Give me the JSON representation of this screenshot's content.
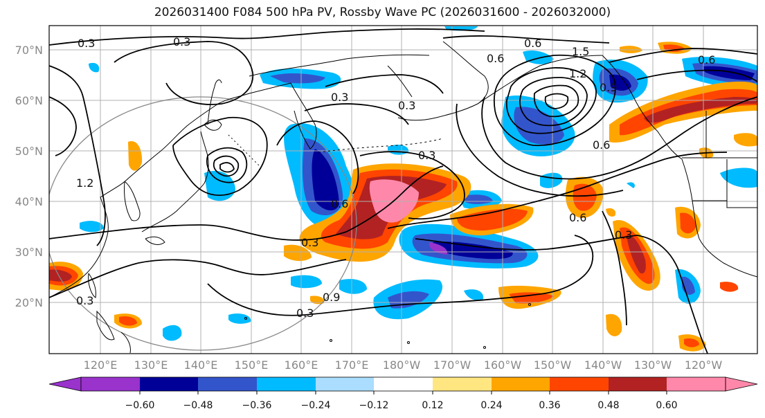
{
  "title": "2026031400 F084 500 hPa PV, Rossby Wave PC (2026031600 - 2026032000)",
  "map": {
    "lat_range": [
      10,
      75
    ],
    "lon_range_east": [
      110,
      251
    ],
    "lat_ticks": [
      "70°N",
      "60°N",
      "50°N",
      "40°N",
      "30°N",
      "20°N"
    ],
    "lon_ticks": [
      "120°E",
      "130°E",
      "140°E",
      "150°E",
      "160°E",
      "170°E",
      "180°W",
      "170°W",
      "160°W",
      "150°W",
      "140°W",
      "130°W",
      "120°W"
    ]
  },
  "contour_labels": [
    "0.3",
    "0.3",
    "0.3",
    "0.3",
    "0.6",
    "1.5",
    "1.2",
    "0.6",
    "0.9",
    "0.6",
    "0.3",
    "0.6",
    "0.6",
    "0.3",
    "0.9",
    "0.3",
    "0.3",
    "0.6",
    "0.3",
    "1.2"
  ],
  "colorbar": {
    "labels": [
      "−0.60",
      "−0.48",
      "−0.36",
      "−0.24",
      "−0.12",
      "0.12",
      "0.24",
      "0.36",
      "0.48",
      "0.60"
    ],
    "colors": [
      "#9933cc",
      "#000099",
      "#3355cc",
      "#00bbff",
      "#aaddff",
      "#ffffff",
      "#ffe680",
      "#ffa500",
      "#ff4500",
      "#b22222",
      "#ff88aa"
    ]
  }
}
